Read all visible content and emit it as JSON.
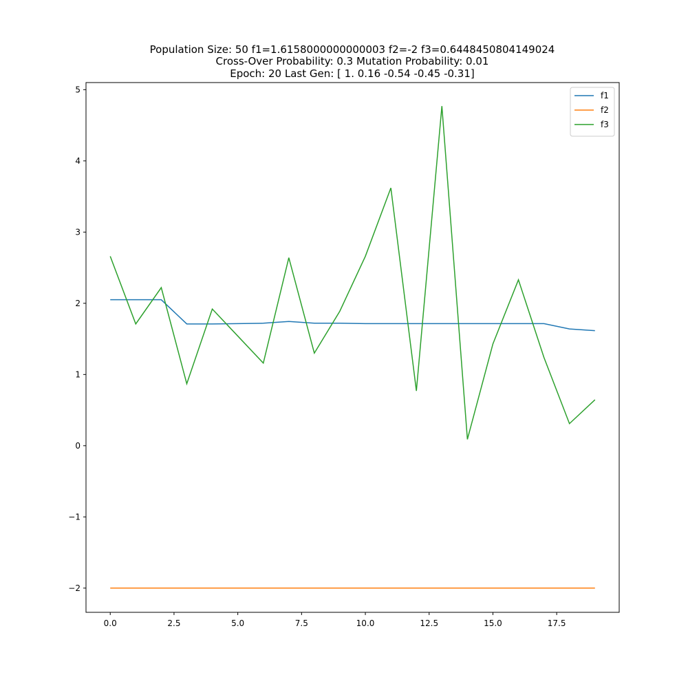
{
  "chart_data": {
    "type": "line",
    "title_lines": [
      "Population Size: 50 f1=1.6158000000000003 f2=-2 f3=0.6448450804149024",
      "Cross-Over Probability: 0.3 Mutation Probability: 0.01",
      "Epoch: 20 Last Gen: [ 1.    0.16 -0.54 -0.45 -0.31]"
    ],
    "xlabel": "",
    "ylabel": "",
    "xlim": [
      -0.95,
      19.95
    ],
    "ylim": [
      -2.34,
      5.1
    ],
    "x_ticks": [
      0.0,
      2.5,
      5.0,
      7.5,
      10.0,
      12.5,
      15.0,
      17.5
    ],
    "x_tick_labels": [
      "0.0",
      "2.5",
      "5.0",
      "7.5",
      "10.0",
      "12.5",
      "15.0",
      "17.5"
    ],
    "y_ticks": [
      -2,
      -1,
      0,
      1,
      2,
      3,
      4,
      5
    ],
    "y_tick_labels": [
      "−2",
      "−1",
      "0",
      "1",
      "2",
      "3",
      "4",
      "5"
    ],
    "grid": false,
    "legend_position": "top-right",
    "x": [
      0,
      1,
      2,
      3,
      4,
      5,
      6,
      7,
      8,
      9,
      10,
      11,
      12,
      13,
      14,
      15,
      16,
      17,
      18,
      19
    ],
    "series": [
      {
        "name": "f1",
        "color": "#1f77b4",
        "values": [
          2.05,
          2.05,
          2.05,
          1.71,
          1.71,
          1.715,
          1.72,
          1.745,
          1.72,
          1.72,
          1.715,
          1.715,
          1.715,
          1.715,
          1.715,
          1.715,
          1.715,
          1.715,
          1.64,
          1.6158
        ]
      },
      {
        "name": "f2",
        "color": "#ff7f0e",
        "values": [
          -2,
          -2,
          -2,
          -2,
          -2,
          -2,
          -2,
          -2,
          -2,
          -2,
          -2,
          -2,
          -2,
          -2,
          -2,
          -2,
          -2,
          -2,
          -2,
          -2
        ]
      },
      {
        "name": "f3",
        "color": "#2ca02c",
        "values": [
          2.66,
          1.71,
          2.22,
          0.87,
          1.92,
          1.54,
          1.16,
          2.64,
          1.3,
          1.89,
          2.66,
          3.62,
          0.77,
          4.77,
          0.09,
          1.43,
          2.33,
          1.24,
          0.31,
          0.6448
        ]
      }
    ]
  }
}
